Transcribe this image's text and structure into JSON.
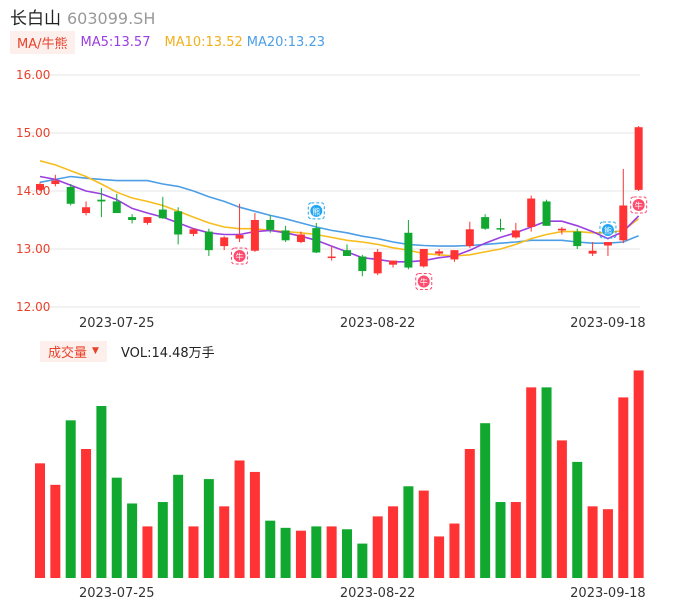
{
  "header": {
    "name": "长白山",
    "code": "603099.SH"
  },
  "ma": {
    "chip": "MA/牛熊",
    "ma5": "MA5:13.57",
    "ma10": "MA10:13.52",
    "ma20": "MA20:13.23"
  },
  "volume": {
    "chip": "成交量",
    "caret": "▼",
    "label": "VOL:14.48万手"
  },
  "colors": {
    "up": "#ff3333",
    "down": "#10a82e",
    "ma5": "#9a3fe0",
    "ma10": "#f7bd1e",
    "ma20": "#4c9fe6",
    "grid": "#e5e5e5",
    "signal_buy": "#ff4b6e",
    "signal_sell": "#21a6f2"
  },
  "icons": [
    "bull-signal-icon",
    "bear-signal-icon"
  ],
  "chart_data": [
    {
      "type": "candlestick",
      "ylim": [
        12.0,
        16.0
      ],
      "yticks": [
        "16.00",
        "15.00",
        "14.00",
        "13.00",
        "12.00"
      ],
      "xticks": [
        {
          "index": 5,
          "label": "2023-07-25"
        },
        {
          "index": 22,
          "label": "2023-08-22"
        },
        {
          "index": 37,
          "label": "2023-09-18"
        }
      ],
      "candles": [
        {
          "o": 14.02,
          "h": 14.15,
          "l": 14.0,
          "c": 14.12
        },
        {
          "o": 14.12,
          "h": 14.28,
          "l": 14.08,
          "c": 14.18
        },
        {
          "o": 14.07,
          "h": 14.12,
          "l": 13.75,
          "c": 13.78
        },
        {
          "o": 13.62,
          "h": 13.82,
          "l": 13.58,
          "c": 13.72
        },
        {
          "o": 13.85,
          "h": 14.05,
          "l": 13.55,
          "c": 13.82
        },
        {
          "o": 13.82,
          "h": 13.95,
          "l": 13.62,
          "c": 13.62
        },
        {
          "o": 13.55,
          "h": 13.6,
          "l": 13.44,
          "c": 13.5
        },
        {
          "o": 13.45,
          "h": 13.55,
          "l": 13.42,
          "c": 13.55
        },
        {
          "o": 13.68,
          "h": 13.9,
          "l": 13.52,
          "c": 13.53
        },
        {
          "o": 13.65,
          "h": 13.72,
          "l": 13.08,
          "c": 13.25
        },
        {
          "o": 13.26,
          "h": 13.36,
          "l": 13.22,
          "c": 13.34
        },
        {
          "o": 13.3,
          "h": 13.35,
          "l": 12.88,
          "c": 12.98
        },
        {
          "o": 13.05,
          "h": 13.22,
          "l": 12.98,
          "c": 13.2
        },
        {
          "o": 13.18,
          "h": 13.78,
          "l": 13.12,
          "c": 13.24
        },
        {
          "o": 12.97,
          "h": 13.62,
          "l": 12.95,
          "c": 13.5
        },
        {
          "o": 13.5,
          "h": 13.58,
          "l": 13.28,
          "c": 13.33
        },
        {
          "o": 13.32,
          "h": 13.4,
          "l": 13.12,
          "c": 13.15
        },
        {
          "o": 13.12,
          "h": 13.3,
          "l": 13.1,
          "c": 13.25
        },
        {
          "o": 13.36,
          "h": 13.45,
          "l": 12.93,
          "c": 12.94
        },
        {
          "o": 12.85,
          "h": 13.05,
          "l": 12.8,
          "c": 12.87
        },
        {
          "o": 12.98,
          "h": 13.08,
          "l": 12.88,
          "c": 12.88
        },
        {
          "o": 12.87,
          "h": 12.9,
          "l": 12.53,
          "c": 12.62
        },
        {
          "o": 12.58,
          "h": 13.0,
          "l": 12.55,
          "c": 12.95
        },
        {
          "o": 12.73,
          "h": 12.8,
          "l": 12.68,
          "c": 12.8
        },
        {
          "o": 13.28,
          "h": 13.5,
          "l": 12.65,
          "c": 12.68
        },
        {
          "o": 12.7,
          "h": 13.0,
          "l": 12.68,
          "c": 13.0
        },
        {
          "o": 12.92,
          "h": 13.0,
          "l": 12.88,
          "c": 12.96
        },
        {
          "o": 12.82,
          "h": 12.98,
          "l": 12.78,
          "c": 12.98
        },
        {
          "o": 13.05,
          "h": 13.47,
          "l": 13.02,
          "c": 13.34
        },
        {
          "o": 13.55,
          "h": 13.6,
          "l": 13.33,
          "c": 13.35
        },
        {
          "o": 13.36,
          "h": 13.52,
          "l": 13.3,
          "c": 13.35
        },
        {
          "o": 13.2,
          "h": 13.45,
          "l": 13.18,
          "c": 13.32
        },
        {
          "o": 13.38,
          "h": 13.92,
          "l": 13.3,
          "c": 13.87
        },
        {
          "o": 13.82,
          "h": 13.85,
          "l": 13.4,
          "c": 13.4
        },
        {
          "o": 13.32,
          "h": 13.38,
          "l": 13.25,
          "c": 13.35
        },
        {
          "o": 13.3,
          "h": 13.35,
          "l": 13.0,
          "c": 13.05
        },
        {
          "o": 12.92,
          "h": 13.12,
          "l": 12.88,
          "c": 12.97
        },
        {
          "o": 13.06,
          "h": 13.12,
          "l": 12.88,
          "c": 13.12
        },
        {
          "o": 13.15,
          "h": 14.38,
          "l": 13.1,
          "c": 13.75
        },
        {
          "o": 14.02,
          "h": 15.12,
          "l": 14.0,
          "c": 15.1
        }
      ],
      "ma5": [
        14.25,
        14.2,
        14.1,
        14.0,
        13.95,
        13.85,
        13.7,
        13.62,
        13.55,
        13.45,
        13.35,
        13.28,
        13.25,
        13.25,
        13.3,
        13.32,
        13.28,
        13.22,
        13.15,
        13.05,
        12.95,
        12.85,
        12.82,
        12.78,
        12.78,
        12.8,
        12.85,
        12.88,
        12.98,
        13.1,
        13.2,
        13.28,
        13.38,
        13.48,
        13.48,
        13.4,
        13.3,
        13.18,
        13.3,
        13.57
      ],
      "ma10": [
        14.52,
        14.45,
        14.35,
        14.25,
        14.12,
        13.98,
        13.88,
        13.82,
        13.75,
        13.65,
        13.55,
        13.45,
        13.38,
        13.35,
        13.35,
        13.32,
        13.3,
        13.28,
        13.25,
        13.2,
        13.15,
        13.12,
        13.08,
        13.02,
        12.98,
        12.92,
        12.9,
        12.88,
        12.9,
        12.95,
        13.0,
        13.08,
        13.18,
        13.25,
        13.3,
        13.3,
        13.28,
        13.28,
        13.32,
        13.52
      ],
      "ma20": [
        14.15,
        14.2,
        14.25,
        14.22,
        14.2,
        14.18,
        14.18,
        14.18,
        14.12,
        14.08,
        14.0,
        13.9,
        13.82,
        13.72,
        13.65,
        13.58,
        13.52,
        13.45,
        13.38,
        13.32,
        13.28,
        13.22,
        13.18,
        13.12,
        13.08,
        13.06,
        13.05,
        13.05,
        13.06,
        13.08,
        13.1,
        13.12,
        13.15,
        13.15,
        13.15,
        13.12,
        13.1,
        13.1,
        13.12,
        13.23
      ],
      "signals": [
        {
          "index": 13,
          "kind": "bull",
          "label": "牛"
        },
        {
          "index": 18,
          "kind": "bear",
          "label": "熊"
        },
        {
          "index": 25,
          "kind": "bull",
          "label": "牛"
        },
        {
          "index": 37,
          "kind": "bear",
          "label": "熊"
        },
        {
          "index": 39,
          "kind": "bull",
          "label": "牛"
        }
      ]
    },
    {
      "type": "bar",
      "label": "VOL:14.48万手",
      "values": [
        8.0,
        6.5,
        11.0,
        9.0,
        12.0,
        7.0,
        5.2,
        3.6,
        5.3,
        7.2,
        3.6,
        6.9,
        5.0,
        8.2,
        7.4,
        4.0,
        3.5,
        3.3,
        3.6,
        3.6,
        3.4,
        2.4,
        4.3,
        5.0,
        6.4,
        6.1,
        2.9,
        3.8,
        9.0,
        10.8,
        5.3,
        5.3,
        13.3,
        13.3,
        9.6,
        8.1,
        5.0,
        4.8,
        12.6,
        14.48
      ]
    }
  ]
}
